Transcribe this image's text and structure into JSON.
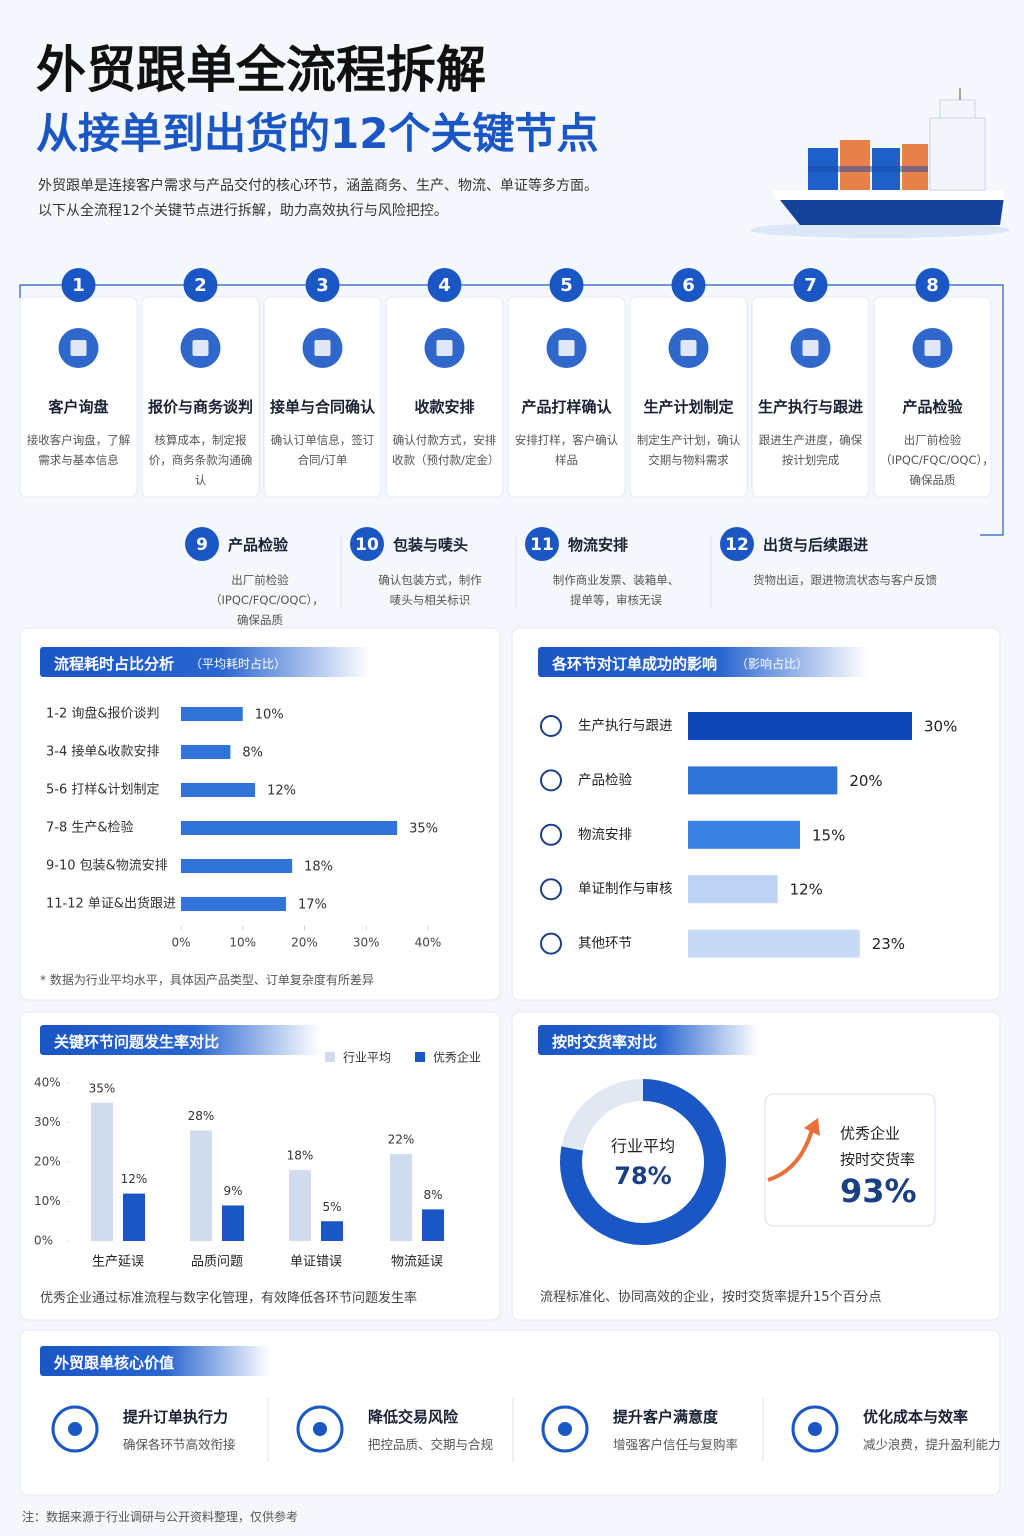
{
  "header": {
    "title": "外贸跟单全流程拆解",
    "subtitle": "从接单到出货的12个关键节点",
    "desc": [
      "外贸跟单是连接客户需求与产品交付的核心环节，涵盖商务、生产、物流、单证等多方面。",
      "以下从全流程12个关键节点进行拆解，助力高效执行与风险把控。"
    ]
  },
  "steps": [
    {
      "num": 1,
      "title": "客户询盘",
      "desc": "接收客户询盘，了解需求与基本信息"
    },
    {
      "num": 2,
      "title": "报价与商务谈判",
      "desc": "核算成本，制定报价，商务条款沟通确认"
    },
    {
      "num": 3,
      "title": "接单与合同确认",
      "desc": "确认订单信息，签订合同/订单"
    },
    {
      "num": 4,
      "title": "收款安排",
      "desc": "确认付款方式，安排收款（预付款/定金）"
    },
    {
      "num": 5,
      "title": "产品打样确认",
      "desc": "安排打样，客户确认样品"
    },
    {
      "num": 6,
      "title": "生产计划制定",
      "desc": "制定生产计划，确认交期与物料需求"
    },
    {
      "num": 7,
      "title": "生产执行与跟进",
      "desc": "跟进生产进度，确保按计划完成"
    },
    {
      "num": 8,
      "title": "产品检验",
      "desc": "出厂前检验（IPQC/FQC/OQC），确保品质"
    },
    {
      "num": 9,
      "title": "产品检验",
      "desc": "出厂前检验（IPQC/FQC/OQC），确保品质"
    },
    {
      "num": 10,
      "title": "包装与唛头",
      "desc": "确认包装方式，制作唛头与相关标识"
    },
    {
      "num": 11,
      "title": "物流安排",
      "desc": "制作商业发票、装箱单、提单等，审核无误"
    },
    {
      "num": 12,
      "title": "出货与后续跟进",
      "desc": "货物出运，跟进物流状态与客户反馈"
    }
  ],
  "chart_data": [
    {
      "type": "hbar",
      "title": "流程耗时占比分析",
      "subtitle": "（平均耗时占比）",
      "categories": [
        "1-2  询盘&报价谈判",
        "3-4  接单&收款安排",
        "5-6  打样&计划制定",
        "7-8  生产&检验",
        "9-10  包装&物流安排",
        "11-12  单证&出货跟进"
      ],
      "values": [
        10,
        8,
        12,
        35,
        18,
        17
      ],
      "value_labels": [
        "10%",
        "8%",
        "12%",
        "35%",
        "18%",
        "17%"
      ],
      "color": "#2f74d6",
      "xlim": [
        0,
        40
      ],
      "xticks": [
        {
          "value": 0,
          "label": "0%"
        },
        {
          "value": 10,
          "label": "10%"
        },
        {
          "value": 20,
          "label": "20%"
        },
        {
          "value": 30,
          "label": "30%"
        },
        {
          "value": 40,
          "label": "40%"
        }
      ],
      "note": "* 数据为行业平均水平，具体因产品类型、订单复杂度有所差异"
    },
    {
      "type": "hbar",
      "title": "各环节对订单成功的影响",
      "subtitle": "（影响占比）",
      "categories": [
        "生产执行与跟进",
        "产品检验",
        "物流安排",
        "单证制作与审核",
        "其他环节"
      ],
      "values": [
        30,
        20,
        15,
        12,
        23
      ],
      "value_labels": [
        "30%",
        "20%",
        "15%",
        "12%",
        "23%"
      ],
      "colors": [
        "#0d47b8",
        "#2f74d6",
        "#3b82e0",
        "#bcd3f2",
        "#c6d9f5"
      ]
    },
    {
      "type": "grouped-bar",
      "title": "关键环节问题发生率对比",
      "categories": [
        "生产延误",
        "品质问题",
        "单证错误",
        "物流延误"
      ],
      "series": [
        {
          "name": "行业平均",
          "color": "#d0dcee",
          "values": [
            35,
            28,
            18,
            22
          ],
          "value_labels": [
            "35%",
            "28%",
            "18%",
            "22%"
          ]
        },
        {
          "name": "优秀企业",
          "color": "#1a56c4",
          "values": [
            12,
            9,
            5,
            8
          ],
          "value_labels": [
            "12%",
            "9%",
            "5%",
            "8%"
          ]
        }
      ],
      "ylim": [
        0,
        40
      ],
      "yticks": [
        {
          "value": 0,
          "label": "0%"
        },
        {
          "value": 10,
          "label": "10%"
        },
        {
          "value": 20,
          "label": "20%"
        },
        {
          "value": 30,
          "label": "30%"
        },
        {
          "value": 40,
          "label": "40%"
        }
      ],
      "legend": "top-right",
      "note": "优秀企业通过标准流程与数字化管理，有效降低各环节问题发生率"
    },
    {
      "type": "donut",
      "title": "按时交货率对比",
      "categories": [
        "行业平均"
      ],
      "values": [
        78
      ],
      "value_labels": [
        "78%"
      ],
      "color": "#1a56c4",
      "highlight": {
        "label": [
          "优秀企业",
          "按时交货率"
        ],
        "value": 93,
        "value_label": "93%"
      },
      "note": "流程标准化、协同高效的企业，按时交货率提升15个百分点"
    }
  ],
  "values_section": {
    "title": "外贸跟单核心价值",
    "items": [
      {
        "title": "提升订单执行力",
        "desc": "确保各环节高效衔接"
      },
      {
        "title": "降低交易风险",
        "desc": "把控品质、交期与合规"
      },
      {
        "title": "提升客户满意度",
        "desc": "增强客户信任与复购率"
      },
      {
        "title": "优化成本与效率",
        "desc": "减少浪费，提升盈利能力"
      }
    ]
  },
  "footer": "注：数据来源于行业调研与公开资料整理，仅供参考"
}
